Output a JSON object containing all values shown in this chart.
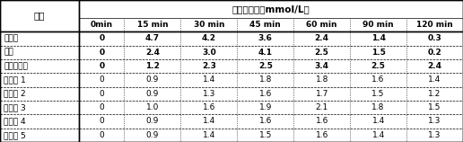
{
  "title": "血糖变化值（mmol/L）",
  "col_header": [
    "样品",
    "0min",
    "15 min",
    "30 min",
    "45 min",
    "60 min",
    "90 min",
    "120 min"
  ],
  "rows": [
    [
      "葡萄糖",
      "0",
      "4.7",
      "4.2",
      "3.6",
      "2.4",
      "1.4",
      "0.3"
    ],
    [
      "淀粉",
      "0",
      "2.4",
      "3.0",
      "4.1",
      "2.5",
      "1.5",
      "0.2"
    ],
    [
      "慢消化淀粉",
      "0",
      "1.2",
      "2.3",
      "2.5",
      "3.4",
      "2.5",
      "2.4"
    ],
    [
      "实验例 1",
      "0",
      "0.9",
      "1.4",
      "1.8",
      "1.8",
      "1.6",
      "1.4"
    ],
    [
      "实验例 2",
      "0",
      "0.9",
      "1.3",
      "1.6",
      "1.7",
      "1.5",
      "1.2"
    ],
    [
      "实验例 3",
      "0",
      "1.0",
      "1.6",
      "1.9",
      "2.1",
      "1.8",
      "1.5"
    ],
    [
      "实验例 4",
      "0",
      "0.9",
      "1.4",
      "1.6",
      "1.6",
      "1.4",
      "1.3"
    ],
    [
      "实验例 5",
      "0",
      "0.9",
      "1.4",
      "1.5",
      "1.6",
      "1.4",
      "1.3"
    ]
  ],
  "col_widths_raw": [
    1.4,
    0.8,
    1.0,
    1.0,
    1.0,
    1.0,
    1.0,
    1.0
  ],
  "border_color": "#000000",
  "title_fontsize": 7.5,
  "cell_fontsize": 6.5,
  "figsize": [
    5.16,
    1.58
  ],
  "dpi": 100,
  "bg_color": "#ffffff"
}
